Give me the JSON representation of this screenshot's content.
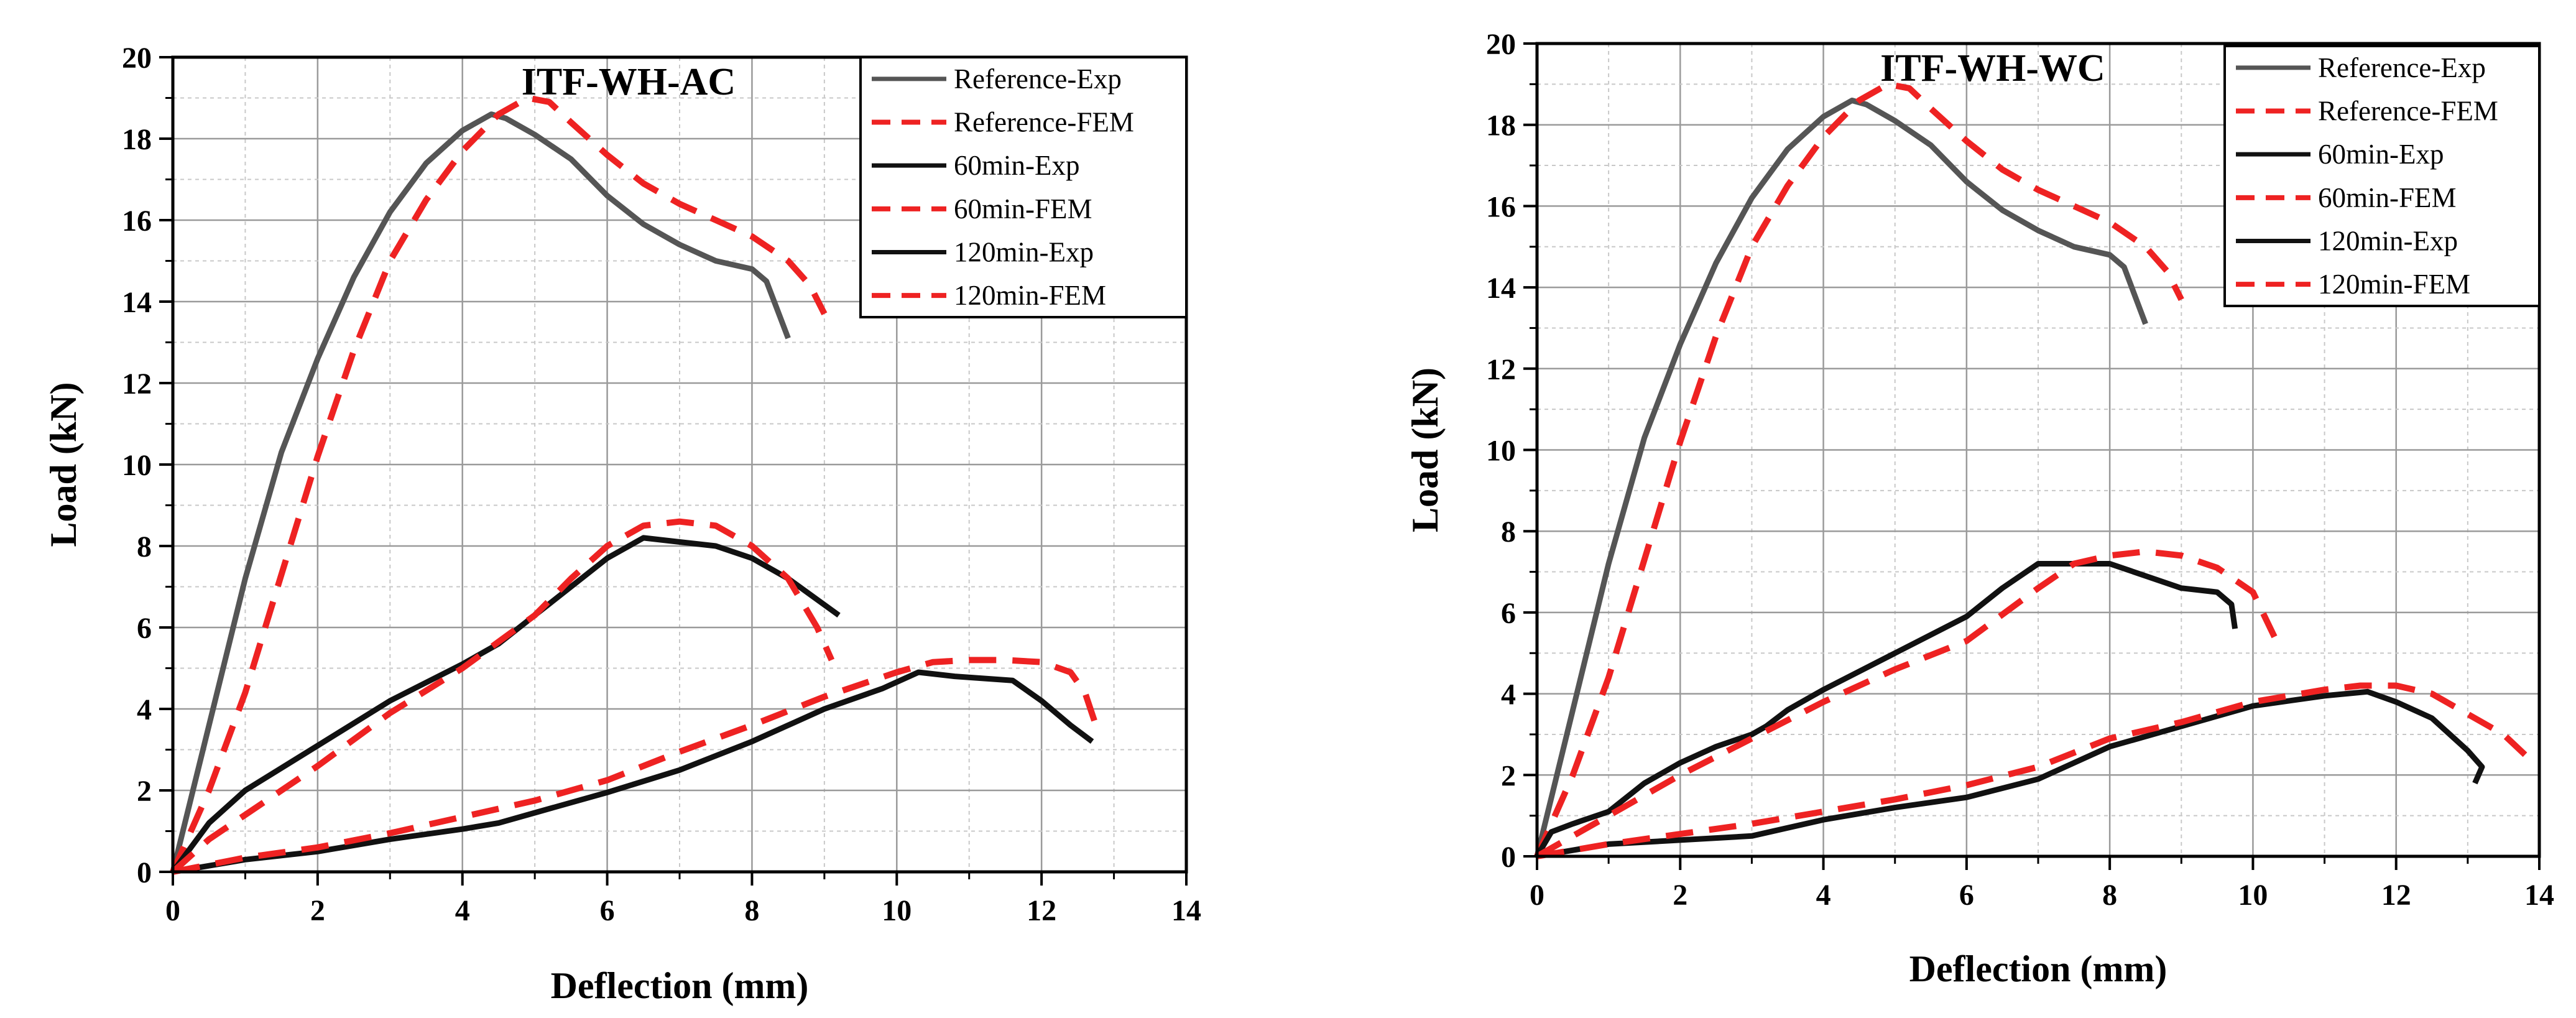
{
  "chart_data": [
    {
      "type": "line",
      "title": "ITF-WH-AC",
      "xlabel": "Deflection (mm)",
      "ylabel": "Load (kN)",
      "xlim": [
        0,
        14
      ],
      "ylim": [
        0,
        20
      ],
      "xticks": [
        0,
        2,
        4,
        6,
        8,
        10,
        12,
        14
      ],
      "yticks": [
        0,
        2,
        4,
        6,
        8,
        10,
        12,
        14,
        16,
        18,
        20
      ],
      "grid": true,
      "legend_position": "top-right",
      "series": [
        {
          "name": "Reference-Exp",
          "color": "#555555",
          "dash": "solid",
          "x": [
            0,
            0.5,
            1,
            1.5,
            2,
            2.5,
            3,
            3.5,
            4,
            4.4,
            4.6,
            5,
            5.5,
            6,
            6.5,
            7,
            7.5,
            8,
            8.2,
            8.35,
            8.5
          ],
          "y": [
            0,
            3.6,
            7.2,
            10.3,
            12.6,
            14.6,
            16.2,
            17.4,
            18.2,
            18.6,
            18.5,
            18.1,
            17.5,
            16.6,
            15.9,
            15.4,
            15.0,
            14.8,
            14.5,
            13.8,
            13.1
          ]
        },
        {
          "name": "Reference-FEM",
          "color": "#ee2222",
          "dash": "dashed",
          "x": [
            0,
            0.5,
            1,
            1.5,
            2,
            2.5,
            3,
            3.5,
            4,
            4.5,
            4.9,
            5.2,
            5.5,
            6,
            6.5,
            7,
            7.5,
            8,
            8.5,
            8.8,
            9.0
          ],
          "y": [
            0,
            2.0,
            4.4,
            7.3,
            10.2,
            12.8,
            15.0,
            16.5,
            17.7,
            18.6,
            19.0,
            18.9,
            18.4,
            17.6,
            16.9,
            16.4,
            16.0,
            15.6,
            15.0,
            14.4,
            13.7
          ]
        },
        {
          "name": "60min-Exp",
          "color": "#111111",
          "dash": "solid",
          "x": [
            0,
            0.5,
            1,
            2,
            3,
            4,
            4.5,
            5,
            5.5,
            6,
            6.5,
            7,
            7.5,
            8,
            8.5,
            9.2
          ],
          "y": [
            0,
            1.2,
            2.0,
            3.1,
            4.2,
            5.1,
            5.6,
            6.3,
            7.0,
            7.7,
            8.2,
            8.1,
            8.0,
            7.7,
            7.2,
            6.3
          ]
        },
        {
          "name": "60min-FEM",
          "color": "#ee2222",
          "dash": "dashed",
          "x": [
            0,
            0.5,
            1,
            2,
            3,
            4,
            5,
            5.5,
            6,
            6.5,
            7,
            7.5,
            8,
            8.5,
            8.9,
            9.1
          ],
          "y": [
            0,
            0.8,
            1.4,
            2.6,
            3.9,
            5.0,
            6.3,
            7.2,
            8.0,
            8.5,
            8.6,
            8.5,
            8.0,
            7.2,
            6.0,
            5.2
          ]
        },
        {
          "name": "120min-Exp",
          "color": "#111111",
          "dash": "solid",
          "x": [
            0,
            1,
            2,
            3,
            4,
            4.5,
            5,
            6,
            7,
            8,
            9,
            9.8,
            10.3,
            10.8,
            11.6,
            12.0,
            12.4,
            12.7
          ],
          "y": [
            0,
            0.3,
            0.5,
            0.8,
            1.05,
            1.2,
            1.45,
            1.95,
            2.5,
            3.2,
            4.0,
            4.5,
            4.9,
            4.8,
            4.7,
            4.2,
            3.6,
            3.2
          ]
        },
        {
          "name": "120min-FEM",
          "color": "#ee2222",
          "dash": "dashed",
          "x": [
            0,
            1,
            2,
            3,
            4,
            5,
            6,
            7,
            8,
            9,
            10,
            10.5,
            11,
            11.5,
            12,
            12.4,
            12.6,
            12.75
          ],
          "y": [
            0,
            0.35,
            0.6,
            0.95,
            1.35,
            1.75,
            2.25,
            2.95,
            3.6,
            4.3,
            4.9,
            5.15,
            5.2,
            5.2,
            5.15,
            4.9,
            4.4,
            3.6
          ]
        }
      ]
    },
    {
      "type": "line",
      "title": "ITF-WH-WC",
      "xlabel": "Deflection (mm)",
      "ylabel": "Load (kN)",
      "xlim": [
        0,
        14
      ],
      "ylim": [
        0,
        20
      ],
      "xticks": [
        0,
        2,
        4,
        6,
        8,
        10,
        12,
        14
      ],
      "yticks": [
        0,
        2,
        4,
        6,
        8,
        10,
        12,
        14,
        16,
        18,
        20
      ],
      "grid": true,
      "legend_position": "top-right",
      "series": [
        {
          "name": "Reference-Exp",
          "color": "#555555",
          "dash": "solid",
          "x": [
            0,
            0.5,
            1,
            1.5,
            2,
            2.5,
            3,
            3.5,
            4,
            4.4,
            4.6,
            5,
            5.5,
            6,
            6.5,
            7,
            7.5,
            8,
            8.2,
            8.35,
            8.5
          ],
          "y": [
            0,
            3.6,
            7.2,
            10.3,
            12.6,
            14.6,
            16.2,
            17.4,
            18.2,
            18.6,
            18.5,
            18.1,
            17.5,
            16.6,
            15.9,
            15.4,
            15.0,
            14.8,
            14.5,
            13.8,
            13.1
          ]
        },
        {
          "name": "Reference-FEM",
          "color": "#ee2222",
          "dash": "dashed",
          "x": [
            0,
            0.5,
            1,
            1.5,
            2,
            2.5,
            3,
            3.5,
            4,
            4.5,
            4.9,
            5.2,
            5.5,
            6,
            6.5,
            7,
            7.5,
            8,
            8.5,
            8.8,
            9.0
          ],
          "y": [
            0,
            2.0,
            4.4,
            7.3,
            10.2,
            12.8,
            15.0,
            16.5,
            17.7,
            18.6,
            19.0,
            18.9,
            18.4,
            17.6,
            16.9,
            16.4,
            16.0,
            15.6,
            15.0,
            14.4,
            13.7
          ]
        },
        {
          "name": "60min-Exp",
          "color": "#111111",
          "dash": "solid",
          "x": [
            0,
            0.2,
            0.5,
            1,
            1.5,
            2,
            2.5,
            3,
            3.2,
            3.5,
            4,
            5,
            6,
            6.5,
            7,
            7.5,
            8,
            8.5,
            9,
            9.5,
            9.7,
            9.75
          ],
          "y": [
            0,
            0.6,
            0.8,
            1.1,
            1.8,
            2.3,
            2.7,
            3.0,
            3.2,
            3.6,
            4.1,
            5.0,
            5.9,
            6.6,
            7.2,
            7.2,
            7.2,
            6.9,
            6.6,
            6.5,
            6.2,
            5.6
          ]
        },
        {
          "name": "60min-FEM",
          "color": "#ee2222",
          "dash": "dashed",
          "x": [
            0,
            0.5,
            1,
            2,
            3,
            4,
            5,
            6,
            7,
            7.5,
            8,
            8.5,
            9,
            9.5,
            10,
            10.3
          ],
          "y": [
            0,
            0.5,
            1.0,
            2.0,
            2.9,
            3.8,
            4.6,
            5.3,
            6.6,
            7.2,
            7.4,
            7.5,
            7.4,
            7.1,
            6.5,
            5.4
          ]
        },
        {
          "name": "120min-Exp",
          "color": "#111111",
          "dash": "solid",
          "x": [
            0,
            1,
            2,
            3,
            4,
            5,
            6,
            7,
            8,
            9,
            10,
            11,
            11.6,
            12,
            12.5,
            13,
            13.2,
            13.1
          ],
          "y": [
            0,
            0.3,
            0.4,
            0.5,
            0.9,
            1.2,
            1.45,
            1.9,
            2.7,
            3.2,
            3.7,
            3.95,
            4.05,
            3.8,
            3.4,
            2.6,
            2.2,
            1.8
          ]
        },
        {
          "name": "120min-FEM",
          "color": "#ee2222",
          "dash": "dashed",
          "x": [
            0,
            1,
            2,
            3,
            4,
            5,
            6,
            7,
            8,
            9,
            10,
            11,
            11.5,
            12,
            12.5,
            13,
            13.5,
            13.8
          ],
          "y": [
            0,
            0.3,
            0.55,
            0.8,
            1.1,
            1.4,
            1.75,
            2.2,
            2.9,
            3.3,
            3.8,
            4.1,
            4.2,
            4.2,
            4.0,
            3.5,
            3.0,
            2.5
          ]
        }
      ]
    }
  ]
}
